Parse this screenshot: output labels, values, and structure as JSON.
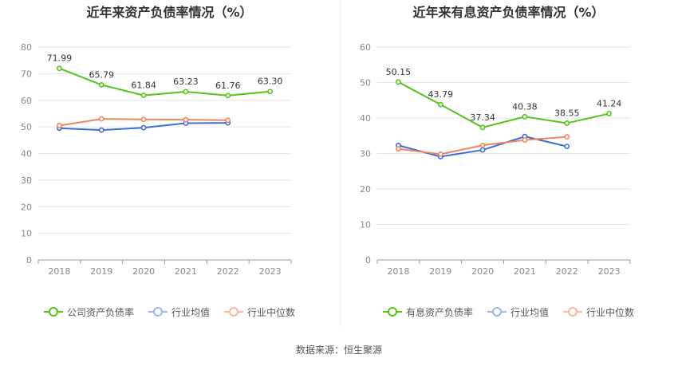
{
  "source": "数据来源：恒生聚源",
  "colors": {
    "company": "#52c41a",
    "avg": "#3b6fd4",
    "median": "#f0845f",
    "grid": "#e6e6e6",
    "axis": "#999999"
  },
  "chart_data": [
    {
      "type": "line",
      "title": "近年来资产负债率情况（%）",
      "categories": [
        "2018",
        "2019",
        "2020",
        "2021",
        "2022",
        "2023"
      ],
      "ylim": [
        0,
        80
      ],
      "yticks": [
        "0",
        "10",
        "20",
        "30",
        "40",
        "50",
        "60",
        "70",
        "80"
      ],
      "grid": true,
      "legend_position": "bottom",
      "series": [
        {
          "name": "公司资产负债率",
          "color": "#52c41a",
          "values": [
            71.99,
            65.79,
            61.84,
            63.23,
            61.76,
            63.3
          ],
          "labels": [
            "71.99",
            "65.79",
            "61.84",
            "63.23",
            "61.76",
            "63.30"
          ]
        },
        {
          "name": "行业均值",
          "color": "#3b6fd4",
          "values": [
            49.5,
            48.8,
            49.7,
            51.4,
            51.5,
            null
          ],
          "labels": []
        },
        {
          "name": "行业中位数",
          "color": "#f0845f",
          "values": [
            50.5,
            53.0,
            52.8,
            52.7,
            52.5,
            null
          ],
          "labels": []
        }
      ]
    },
    {
      "type": "line",
      "title": "近年来有息资产负债率情况（%）",
      "categories": [
        "2018",
        "2019",
        "2020",
        "2021",
        "2022",
        "2023"
      ],
      "ylim": [
        0,
        60
      ],
      "yticks": [
        "0",
        "10",
        "20",
        "30",
        "40",
        "50",
        "60"
      ],
      "grid": true,
      "legend_position": "bottom",
      "series": [
        {
          "name": "有息资产负债率",
          "color": "#52c41a",
          "values": [
            50.15,
            43.79,
            37.34,
            40.38,
            38.55,
            41.24
          ],
          "labels": [
            "50.15",
            "43.79",
            "37.34",
            "40.38",
            "38.55",
            "41.24"
          ]
        },
        {
          "name": "行业均值",
          "color": "#3b6fd4",
          "values": [
            32.3,
            29.1,
            31.0,
            34.8,
            32.0,
            null
          ],
          "labels": []
        },
        {
          "name": "行业中位数",
          "color": "#f0845f",
          "values": [
            31.3,
            29.8,
            32.3,
            33.8,
            34.7,
            null
          ],
          "labels": []
        }
      ]
    }
  ]
}
